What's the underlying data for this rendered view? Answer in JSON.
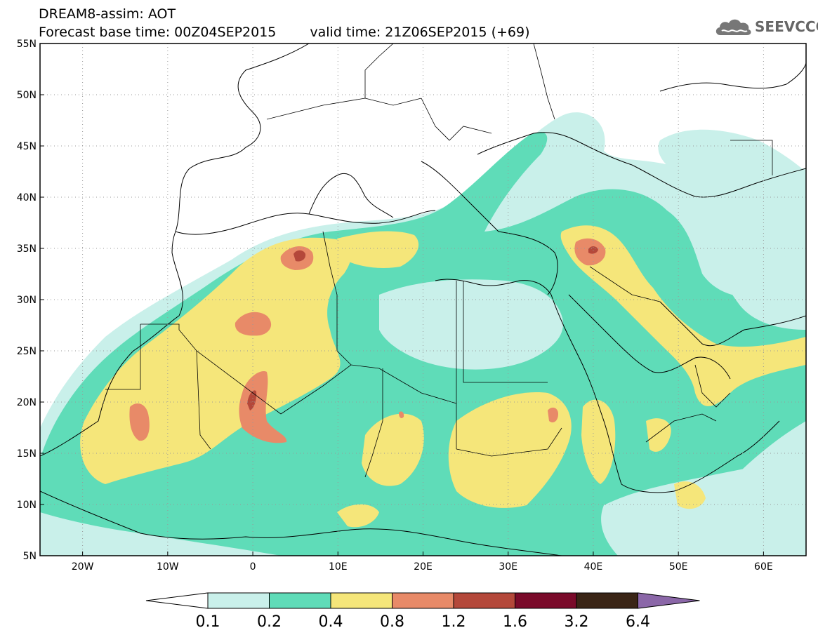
{
  "header": {
    "line1": "DREAM8-assim: AOT",
    "base_time": "Forecast base time: 00Z04SEP2015",
    "valid_time": "valid time: 21Z06SEP2015 (+69)",
    "logo_text": "SEEVCCC",
    "logo_icon": "cloud-icon"
  },
  "map": {
    "lon_range": [
      -25,
      65
    ],
    "lat_range": [
      5,
      55
    ],
    "lat_labels": [
      "55N",
      "50N",
      "45N",
      "40N",
      "35N",
      "30N",
      "25N",
      "20N",
      "15N",
      "10N",
      "5N"
    ],
    "lat_values": [
      55,
      50,
      45,
      40,
      35,
      30,
      25,
      20,
      15,
      10,
      5
    ],
    "lon_labels": [
      "20W",
      "10W",
      "0",
      "10E",
      "20E",
      "30E",
      "40E",
      "50E",
      "60E"
    ],
    "lon_values": [
      -20,
      -10,
      0,
      10,
      20,
      30,
      40,
      50,
      60
    ],
    "grid": "dotted"
  },
  "colorbar": {
    "colors": [
      "#c9f0ea",
      "#5fdcb8",
      "#f5e67a",
      "#e88a68",
      "#b4483a",
      "#7a0a2a",
      "#3a2516"
    ],
    "extend_low_color": "#ffffff",
    "extend_high_color": "#8b67a8",
    "labels": [
      "0.1",
      "0.2",
      "0.4",
      "0.8",
      "1.2",
      "1.6",
      "3.2",
      "6.4"
    ]
  }
}
